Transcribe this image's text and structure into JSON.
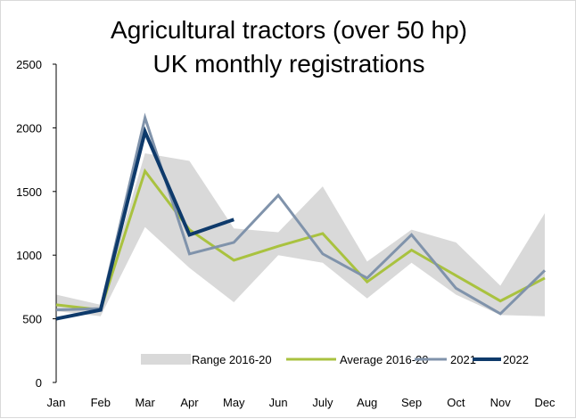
{
  "chart_data": {
    "type": "line",
    "title": [
      "Agricultural tractors (over 50 hp)",
      "UK monthly registrations"
    ],
    "categories": [
      "Jan",
      "Feb",
      "Mar",
      "Apr",
      "May",
      "Jun",
      "July",
      "Aug",
      "Sep",
      "Oct",
      "Nov",
      "Dec"
    ],
    "ylim": [
      0,
      2500
    ],
    "yticks": [
      0,
      500,
      1000,
      1500,
      2000,
      2500
    ],
    "grid": false,
    "legend_position": "bottom",
    "range": {
      "name": "Range 2016-20",
      "color": "#d9d9d9",
      "low": [
        560,
        520,
        1220,
        900,
        630,
        1000,
        940,
        660,
        940,
        690,
        530,
        520
      ],
      "high": [
        690,
        610,
        1800,
        1740,
        1210,
        1180,
        1540,
        950,
        1200,
        1100,
        760,
        1330
      ]
    },
    "series": [
      {
        "name": "Average 2016-20",
        "color": "#a9c23f",
        "width": 3,
        "values": [
          610,
          570,
          1660,
          1200,
          960,
          1070,
          1170,
          790,
          1040,
          840,
          640,
          820
        ]
      },
      {
        "name": "2021",
        "color": "#8093ab",
        "width": 3,
        "values": [
          570,
          580,
          2080,
          1010,
          1100,
          1470,
          1010,
          820,
          1160,
          740,
          540,
          880
        ]
      },
      {
        "name": "2022",
        "color": "#0e3a6b",
        "width": 4,
        "values": [
          500,
          570,
          1970,
          1160,
          1280,
          null,
          null,
          null,
          null,
          null,
          null,
          null
        ]
      }
    ]
  }
}
